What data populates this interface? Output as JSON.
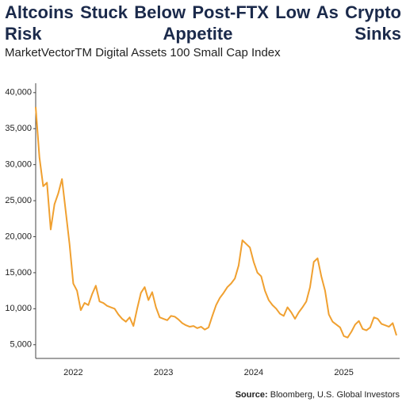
{
  "chart_data": {
    "type": "line",
    "title": "Altcoins Stuck Below Post-FTX Low As Crypto Risk Appetite Sinks",
    "subtitle": "MarketVectorTM Digital Assets 100 Small Cap Index",
    "source_label": "Source:",
    "source": "Bloomberg, U.S. Global Investors",
    "categories": [
      null,
      null,
      null,
      null,
      null,
      null,
      null,
      null,
      null,
      null,
      "2022",
      null,
      null,
      null,
      null,
      null,
      null,
      null,
      null,
      null,
      null,
      null,
      null,
      null,
      null,
      null,
      null,
      null,
      null,
      null,
      null,
      null,
      null,
      null,
      "2023",
      null,
      null,
      null,
      null,
      null,
      null,
      null,
      null,
      null,
      null,
      null,
      null,
      null,
      null,
      null,
      null,
      null,
      null,
      null,
      null,
      null,
      null,
      null,
      "2024",
      null,
      null,
      null,
      null,
      null,
      null,
      null,
      null,
      null,
      null,
      null,
      null,
      null,
      null,
      null,
      null,
      null,
      null,
      null,
      null,
      null,
      null,
      null,
      "2025",
      null,
      null,
      null,
      null,
      null,
      null,
      null,
      null,
      null,
      null,
      null,
      null,
      null,
      null
    ],
    "series": [
      {
        "name": "MarketVectorTM Digital Assets 100 Small Cap Index",
        "color": "#f0a030",
        "values": [
          38000,
          31000,
          27000,
          27500,
          21000,
          24500,
          26000,
          28000,
          23500,
          19000,
          13500,
          12500,
          9800,
          10800,
          10500,
          12000,
          13200,
          11000,
          10800,
          10400,
          10200,
          10000,
          9200,
          8600,
          8200,
          8800,
          7600,
          10000,
          12200,
          13000,
          11200,
          12300,
          10200,
          8800,
          8600,
          8400,
          9000,
          8900,
          8500,
          8000,
          7700,
          7500,
          7600,
          7300,
          7500,
          7100,
          7400,
          9000,
          10500,
          11500,
          12200,
          13000,
          13500,
          14200,
          16000,
          19500,
          19000,
          18500,
          16500,
          15000,
          14500,
          12500,
          11200,
          10500,
          10000,
          9300,
          9000,
          10200,
          9500,
          8600,
          9500,
          10200,
          11000,
          13000,
          16500,
          17000,
          14500,
          12500,
          9200,
          8200,
          7800,
          7400,
          6200,
          6000,
          6800,
          7800,
          8300,
          7200,
          7000,
          7400,
          8800,
          8600,
          7900,
          7700,
          7500,
          8000,
          6300
        ]
      }
    ],
    "ylim": [
      3100,
      41300
    ],
    "yticks": [
      {
        "value": 5000,
        "label": "5,000"
      },
      {
        "value": 10000,
        "label": "10,000"
      },
      {
        "value": 15000,
        "label": "15,000"
      },
      {
        "value": 20000,
        "label": "20,000"
      },
      {
        "value": 25000,
        "label": "25,000"
      },
      {
        "value": 30000,
        "label": "30,000"
      },
      {
        "value": 35000,
        "label": "35,000"
      },
      {
        "value": 40000,
        "label": "40,000"
      }
    ],
    "grid": false
  }
}
